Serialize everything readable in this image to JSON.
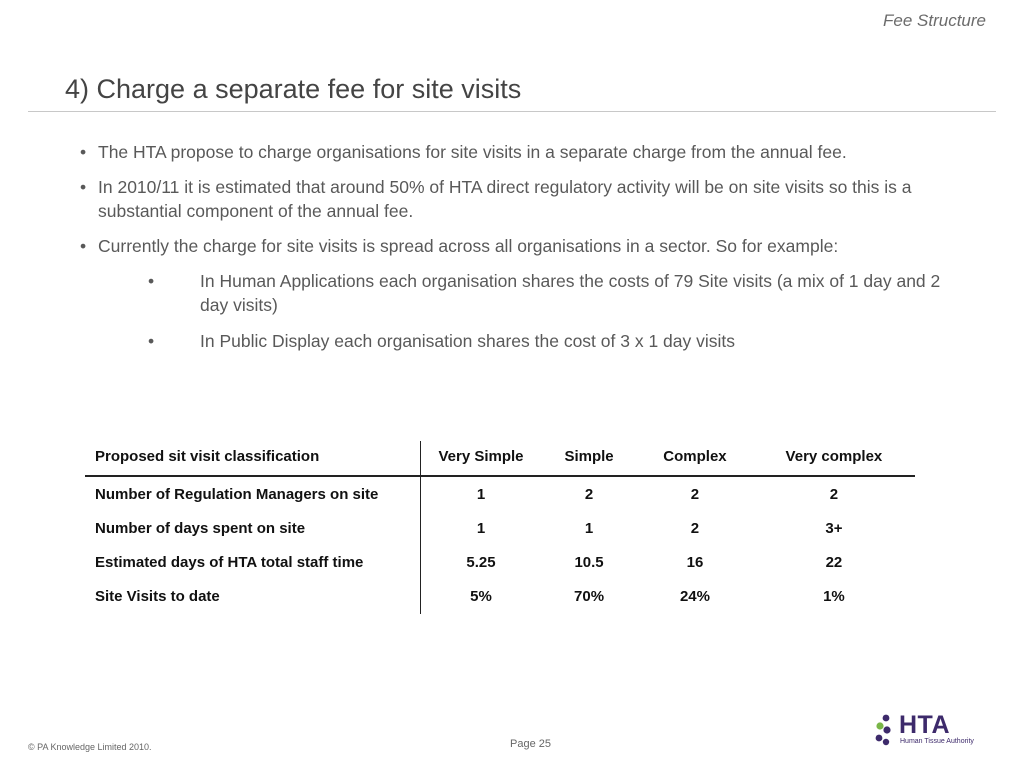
{
  "header": {
    "section": "Fee Structure",
    "title": "4) Charge a separate fee for site visits"
  },
  "bullets": [
    {
      "text": "The HTA propose to charge organisations for site visits in a separate charge from the annual fee."
    },
    {
      "text": "In 2010/11 it is estimated that around 50% of HTA direct regulatory activity will be on site visits so this is a substantial component of the annual fee."
    },
    {
      "text": "Currently the charge for site visits is spread across all organisations in a sector.  So for example:"
    }
  ],
  "sub_bullets": [
    {
      "text": "In Human Applications each organisation shares the costs of 79 Site visits (a mix of 1 day and 2 day visits)"
    },
    {
      "text": "In Public Display each organisation shares the cost of 3 x 1 day visits"
    }
  ],
  "bullet_symbol": "•",
  "table": {
    "headers": [
      "Proposed sit visit classification",
      "Very Simple",
      "Simple",
      "Complex",
      "Very complex"
    ],
    "rows": [
      [
        "Number of Regulation Managers on site",
        "1",
        "2",
        "2",
        "2"
      ],
      [
        "Number of days spent on site",
        "1",
        "1",
        "2",
        "3+"
      ],
      [
        "Estimated days of HTA total staff time",
        "5.25",
        "10.5",
        "16",
        "22"
      ],
      [
        "Site Visits to date",
        "5%",
        "70%",
        "24%",
        "1%"
      ]
    ]
  },
  "footer": {
    "copyright": "© PA Knowledge Limited 2010.",
    "page": "Page 25"
  },
  "logo": {
    "icon": "hta-logo-icon",
    "wordmark": "HTA",
    "tagline": "Human Tissue Authority",
    "colors": {
      "purple": "#3d2a6b",
      "green": "#7ab648"
    }
  }
}
